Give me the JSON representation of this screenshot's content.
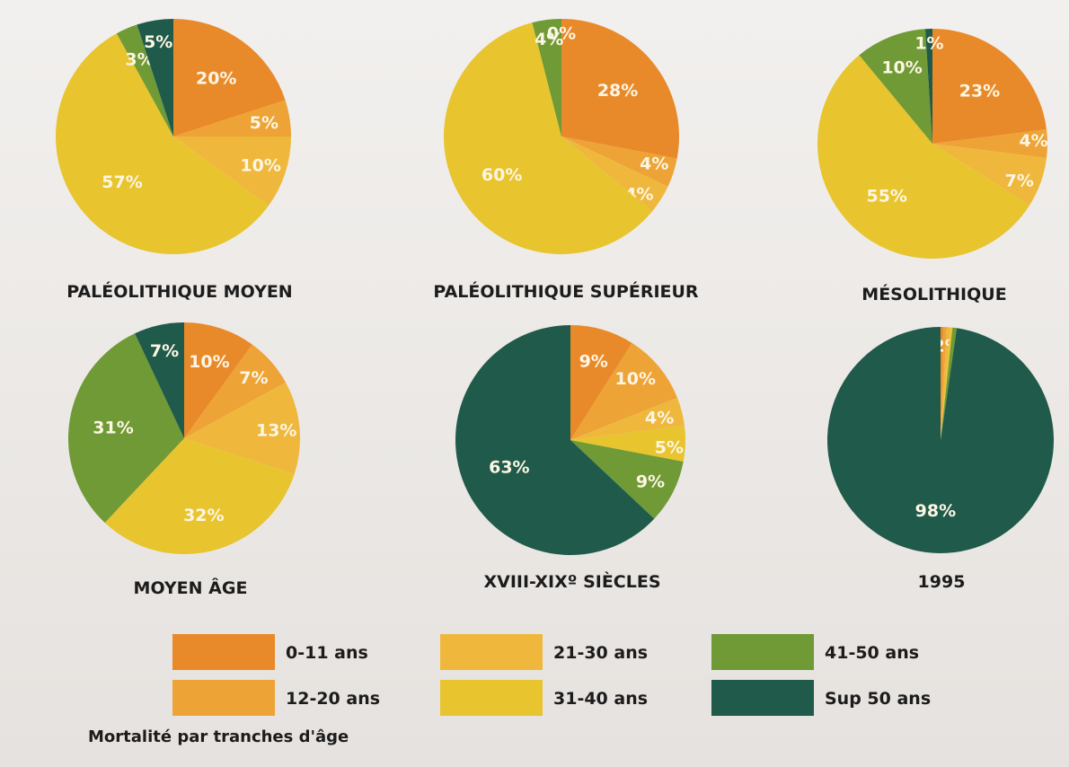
{
  "colors": {
    "0-11": "#e98a2a",
    "12-20": "#eea336",
    "21-30": "#efb83d",
    "31-40": "#e8c42e",
    "41-50": "#6f9a36",
    "sup50": "#1f5a4a"
  },
  "legend": {
    "items": [
      {
        "key": "0-11",
        "label": "0-11 ans"
      },
      {
        "key": "12-20",
        "label": "12-20 ans"
      },
      {
        "key": "21-30",
        "label": "21-30 ans"
      },
      {
        "key": "31-40",
        "label": "31-40 ans"
      },
      {
        "key": "41-50",
        "label": "41-50 ans"
      },
      {
        "key": "sup50",
        "label": "Sup 50 ans"
      }
    ],
    "caption": "Mortalité par tranches d'âge"
  },
  "chart_data": [
    {
      "type": "pie",
      "title": "PALÉOLITHIQUE MOYEN",
      "slices": [
        {
          "category": "0-11 ans",
          "key": "0-11",
          "value": 20,
          "label": "20%"
        },
        {
          "category": "12-20 ans",
          "key": "12-20",
          "value": 5,
          "label": "5%"
        },
        {
          "category": "21-30 ans",
          "key": "21-30",
          "value": 10,
          "label": "10%"
        },
        {
          "category": "31-40 ans",
          "key": "31-40",
          "value": 57,
          "label": "57%"
        },
        {
          "category": "41-50 ans",
          "key": "41-50",
          "value": 3,
          "label": "3%"
        },
        {
          "category": "Sup 50 ans",
          "key": "sup50",
          "value": 5,
          "label": "5%"
        }
      ]
    },
    {
      "type": "pie",
      "title": "PALÉOLITHIQUE SUPÉRIEUR",
      "slices": [
        {
          "category": "0-11 ans",
          "key": "0-11",
          "value": 28,
          "label": "28%"
        },
        {
          "category": "12-20 ans",
          "key": "12-20",
          "value": 4,
          "label": "4%"
        },
        {
          "category": "21-30 ans",
          "key": "21-30",
          "value": 4,
          "label": "4%"
        },
        {
          "category": "31-40 ans",
          "key": "31-40",
          "value": 60,
          "label": "60%"
        },
        {
          "category": "41-50 ans",
          "key": "41-50",
          "value": 4,
          "label": "4%"
        },
        {
          "category": "Sup 50 ans",
          "key": "sup50",
          "value": 0,
          "label": "0%"
        }
      ]
    },
    {
      "type": "pie",
      "title": "MÉSOLITHIQUE",
      "slices": [
        {
          "category": "0-11 ans",
          "key": "0-11",
          "value": 23,
          "label": "23%"
        },
        {
          "category": "12-20 ans",
          "key": "12-20",
          "value": 4,
          "label": "4%"
        },
        {
          "category": "21-30 ans",
          "key": "21-30",
          "value": 7,
          "label": "7%"
        },
        {
          "category": "31-40 ans",
          "key": "31-40",
          "value": 55,
          "label": "55%"
        },
        {
          "category": "41-50 ans",
          "key": "41-50",
          "value": 10,
          "label": "10%"
        },
        {
          "category": "Sup 50 ans",
          "key": "sup50",
          "value": 1,
          "label": "1%"
        }
      ]
    },
    {
      "type": "pie",
      "title": "MOYEN ÂGE",
      "slices": [
        {
          "category": "0-11 ans",
          "key": "0-11",
          "value": 10,
          "label": "10%"
        },
        {
          "category": "12-20 ans",
          "key": "12-20",
          "value": 7,
          "label": "7%"
        },
        {
          "category": "21-30 ans",
          "key": "21-30",
          "value": 13,
          "label": "13%"
        },
        {
          "category": "31-40 ans",
          "key": "31-40",
          "value": 32,
          "label": "32%"
        },
        {
          "category": "41-50 ans",
          "key": "41-50",
          "value": 31,
          "label": "31%"
        },
        {
          "category": "Sup 50 ans",
          "key": "sup50",
          "value": 7,
          "label": "7%"
        }
      ]
    },
    {
      "type": "pie",
      "title": "XVIII-XIXº SIÈCLES",
      "slices": [
        {
          "category": "0-11 ans",
          "key": "0-11",
          "value": 9,
          "label": "9%"
        },
        {
          "category": "12-20 ans",
          "key": "12-20",
          "value": 10,
          "label": "10%"
        },
        {
          "category": "21-30 ans",
          "key": "21-30",
          "value": 4,
          "label": "4%"
        },
        {
          "category": "31-40 ans",
          "key": "31-40",
          "value": 5,
          "label": "5%"
        },
        {
          "category": "41-50 ans",
          "key": "41-50",
          "value": 9,
          "label": "9%"
        },
        {
          "category": "Sup 50 ans",
          "key": "sup50",
          "value": 63,
          "label": "63%"
        }
      ]
    },
    {
      "type": "pie",
      "title": "1995",
      "slices": [
        {
          "category": "0-11 ans",
          "key": "0-11",
          "value": 0.4,
          "label": ""
        },
        {
          "category": "12-20 ans",
          "key": "12-20",
          "value": 0.5,
          "label": ""
        },
        {
          "category": "21-30 ans",
          "key": "21-30",
          "value": 0.5,
          "label": "2%"
        },
        {
          "category": "31-40 ans",
          "key": "31-40",
          "value": 0.3,
          "label": ""
        },
        {
          "category": "41-50 ans",
          "key": "41-50",
          "value": 0.6,
          "label": ""
        },
        {
          "category": "Sup 50 ans",
          "key": "sup50",
          "value": 98,
          "label": "98%"
        }
      ]
    }
  ]
}
